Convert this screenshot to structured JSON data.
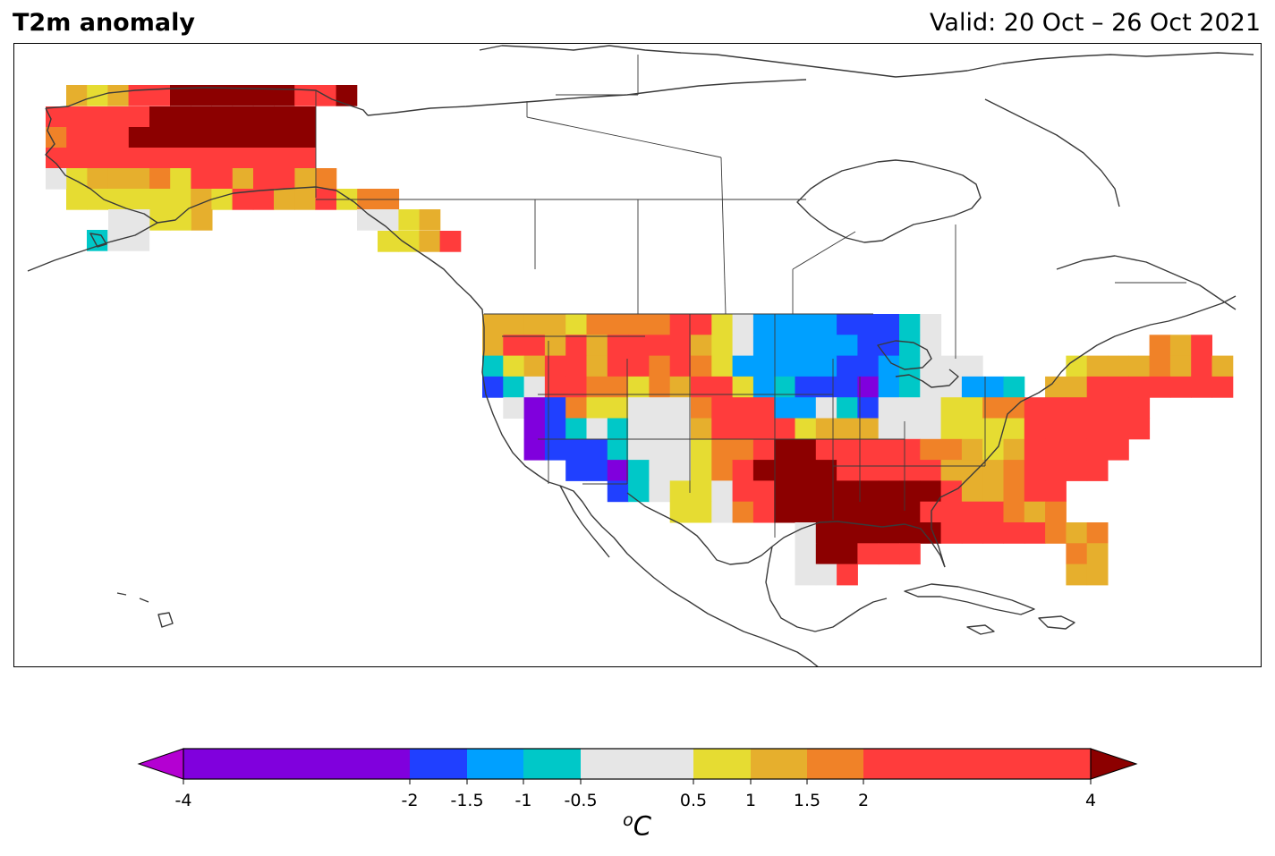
{
  "header": {
    "title": "T2m anomaly",
    "valid": "Valid: 20 Oct – 26 Oct 2021"
  },
  "colorbar": {
    "unit_prefix": "o",
    "unit_main": "C",
    "ticks": [
      "-4",
      "-2",
      "-1.5",
      "-1",
      "-0.5",
      "0.5",
      "1",
      "1.5",
      "2",
      "4"
    ],
    "bins": [
      {
        "from": -4,
        "to": -2,
        "color": "#8000dd"
      },
      {
        "from": -2,
        "to": -1.5,
        "color": "#2040ff"
      },
      {
        "from": -1.5,
        "to": -1,
        "color": "#00a0ff"
      },
      {
        "from": -1,
        "to": -0.5,
        "color": "#00c8c8"
      },
      {
        "from": -0.5,
        "to": 0.5,
        "color": "#e6e6e6"
      },
      {
        "from": 0.5,
        "to": 1,
        "color": "#e6dc32"
      },
      {
        "from": 1,
        "to": 1.5,
        "color": "#e6af2d"
      },
      {
        "from": 1.5,
        "to": 2,
        "color": "#f08228"
      },
      {
        "from": 2,
        "to": 4,
        "color": "#ff3c3c"
      }
    ],
    "under_color": "#b400d2",
    "over_color": "#8c0000"
  },
  "legend_colors": {
    "P": "#8000dd",
    "B": "#2040ff",
    "L": "#00a0ff",
    "C": "#00c8c8",
    "W": "#e6e6e6",
    "Y": "#e6dc32",
    "G": "#e6af2d",
    "O": "#f08228",
    "R": "#ff3c3c",
    "D": "#8c0000"
  }
}
